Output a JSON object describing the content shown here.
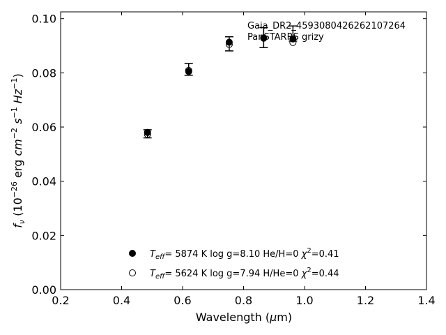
{
  "chart_data": {
    "type": "scatter",
    "annotation_lines": [
      "Gaia_DR2_4593080426262107264",
      "PanSTARRS grizy"
    ],
    "xlabel_text": "Wavelength (",
    "xlabel_mu": "μ",
    "xlabel_unit": "m)",
    "ylabel_parts": [
      "f",
      "ν",
      " (10",
      "−26",
      " erg ",
      "cm",
      "−2",
      " ",
      "s",
      "−1",
      " ",
      "Hz",
      "−1",
      ")"
    ],
    "xlim": [
      0.2,
      1.4
    ],
    "ylim": [
      0.0,
      0.1025
    ],
    "xticks": [
      0.2,
      0.4,
      0.6,
      0.8,
      1.0,
      1.2,
      1.4
    ],
    "xtick_labels": [
      "0.2",
      "0.4",
      "0.6",
      "0.8",
      "1.0",
      "1.2",
      "1.4"
    ],
    "yticks": [
      0.0,
      0.02,
      0.04,
      0.06,
      0.08,
      0.1
    ],
    "ytick_labels": [
      "0.00",
      "0.02",
      "0.04",
      "0.06",
      "0.08",
      "0.10"
    ],
    "observed": {
      "x": [
        0.485,
        0.62,
        0.753,
        0.866,
        0.962
      ],
      "y": [
        0.0575,
        0.0813,
        0.0907,
        0.093,
        0.0945
      ],
      "err": [
        0.0015,
        0.0022,
        0.0026,
        0.0037,
        0.0028
      ]
    },
    "series": [
      {
        "marker": "filled",
        "x": [
          0.485,
          0.62,
          0.753,
          0.866,
          0.962
        ],
        "y": [
          0.058,
          0.0805,
          0.0913,
          0.0929,
          0.0925
        ],
        "legend": {
          "T": "T",
          "eff": "eff",
          "rest": "=  5874 K  log g=8.10  He/H=0  ",
          "chi": "χ",
          "two": "2",
          "chi_val": "=0.41"
        }
      },
      {
        "marker": "open",
        "x": [
          0.485,
          0.62,
          0.753,
          0.866,
          0.962
        ],
        "y": [
          0.0573,
          0.0809,
          0.0905,
          0.0928,
          0.0912
        ],
        "legend": {
          "T": "T",
          "eff": "eff",
          "rest": "=  5624 K  log g=7.94  H/He=0  ",
          "chi": "χ",
          "two": "2",
          "chi_val": "=0.44"
        }
      }
    ]
  }
}
